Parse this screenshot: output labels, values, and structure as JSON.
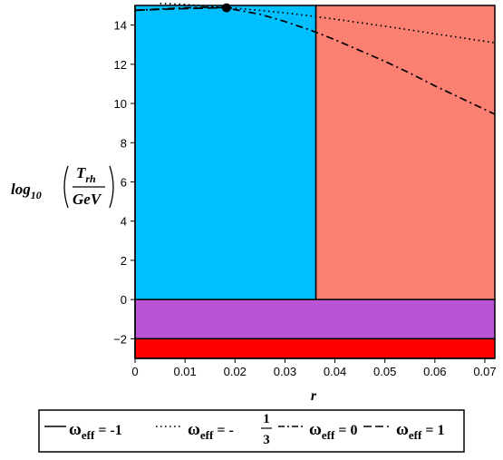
{
  "chart_data": {
    "type": "line",
    "xlabel": "r",
    "ylabel": {
      "prefix": "log",
      "prefix_sub": "10",
      "numerator": "T",
      "numerator_sub": "rh",
      "denominator": "GeV"
    },
    "xlim": [
      0,
      0.072
    ],
    "ylim": [
      -3,
      15
    ],
    "x_ticks": [
      "0",
      "0.01",
      "0.02",
      "0.03",
      "0.04",
      "0.05",
      "0.06",
      "0.07"
    ],
    "y_ticks": [
      "−2",
      "0",
      "2",
      "4",
      "6",
      "8",
      "10",
      "12",
      "14"
    ],
    "x_tick_values": [
      0,
      0.01,
      0.02,
      0.03,
      0.04,
      0.05,
      0.06,
      0.07
    ],
    "y_tick_values": [
      -2,
      0,
      2,
      4,
      6,
      8,
      10,
      12,
      14
    ],
    "regions": [
      {
        "x": [
          0,
          0.0362
        ],
        "y": [
          0,
          15
        ],
        "color": "#00bfff"
      },
      {
        "x": [
          0.0362,
          0.072
        ],
        "y": [
          0,
          15
        ],
        "color": "#fa8072"
      },
      {
        "x": [
          0,
          0.072
        ],
        "y": [
          -2,
          0
        ],
        "color": "#b955d4"
      },
      {
        "x": [
          0,
          0.072
        ],
        "y": [
          -3,
          -2
        ],
        "color": "#ff0000"
      }
    ],
    "series": [
      {
        "dash": "dotted",
        "x": [
          0.005,
          0.01,
          0.018,
          0.025,
          0.03,
          0.035,
          0.04,
          0.045,
          0.05,
          0.055,
          0.06,
          0.065,
          0.072
        ],
        "y": [
          15.1,
          15.05,
          14.9,
          14.75,
          14.62,
          14.47,
          14.3,
          14.12,
          13.94,
          13.75,
          13.55,
          13.36,
          13.1
        ]
      },
      {
        "dash": "dashdot",
        "x": [
          0,
          0.005,
          0.01,
          0.015,
          0.018,
          0.025,
          0.03,
          0.035,
          0.04,
          0.045,
          0.05,
          0.055,
          0.06,
          0.065,
          0.072
        ],
        "y": [
          14.75,
          14.82,
          14.88,
          14.91,
          14.88,
          14.55,
          14.18,
          13.75,
          13.25,
          12.7,
          12.15,
          11.55,
          10.9,
          10.3,
          9.45
        ]
      },
      {
        "dash": "dashed",
        "x": [
          0,
          0.005,
          0.01,
          0.015,
          0.018
        ],
        "y": [
          14.75,
          14.8,
          14.84,
          14.87,
          14.88
        ]
      }
    ],
    "marker": {
      "x": 0.0183,
      "y": 14.88,
      "color": "#000000"
    },
    "legend": [
      {
        "dash": "solid",
        "symbol": "ω",
        "sub": "eff",
        "rhs": "= -1"
      },
      {
        "dash": "dotted",
        "symbol": "ω",
        "sub": "eff",
        "rhs_minus": "= -",
        "num": "1",
        "den": "3"
      },
      {
        "dash": "dashdot",
        "symbol": "ω",
        "sub": "eff",
        "rhs": "= 0"
      },
      {
        "dash": "dashed",
        "symbol": "ω",
        "sub": "eff",
        "rhs": "= 1"
      }
    ]
  }
}
